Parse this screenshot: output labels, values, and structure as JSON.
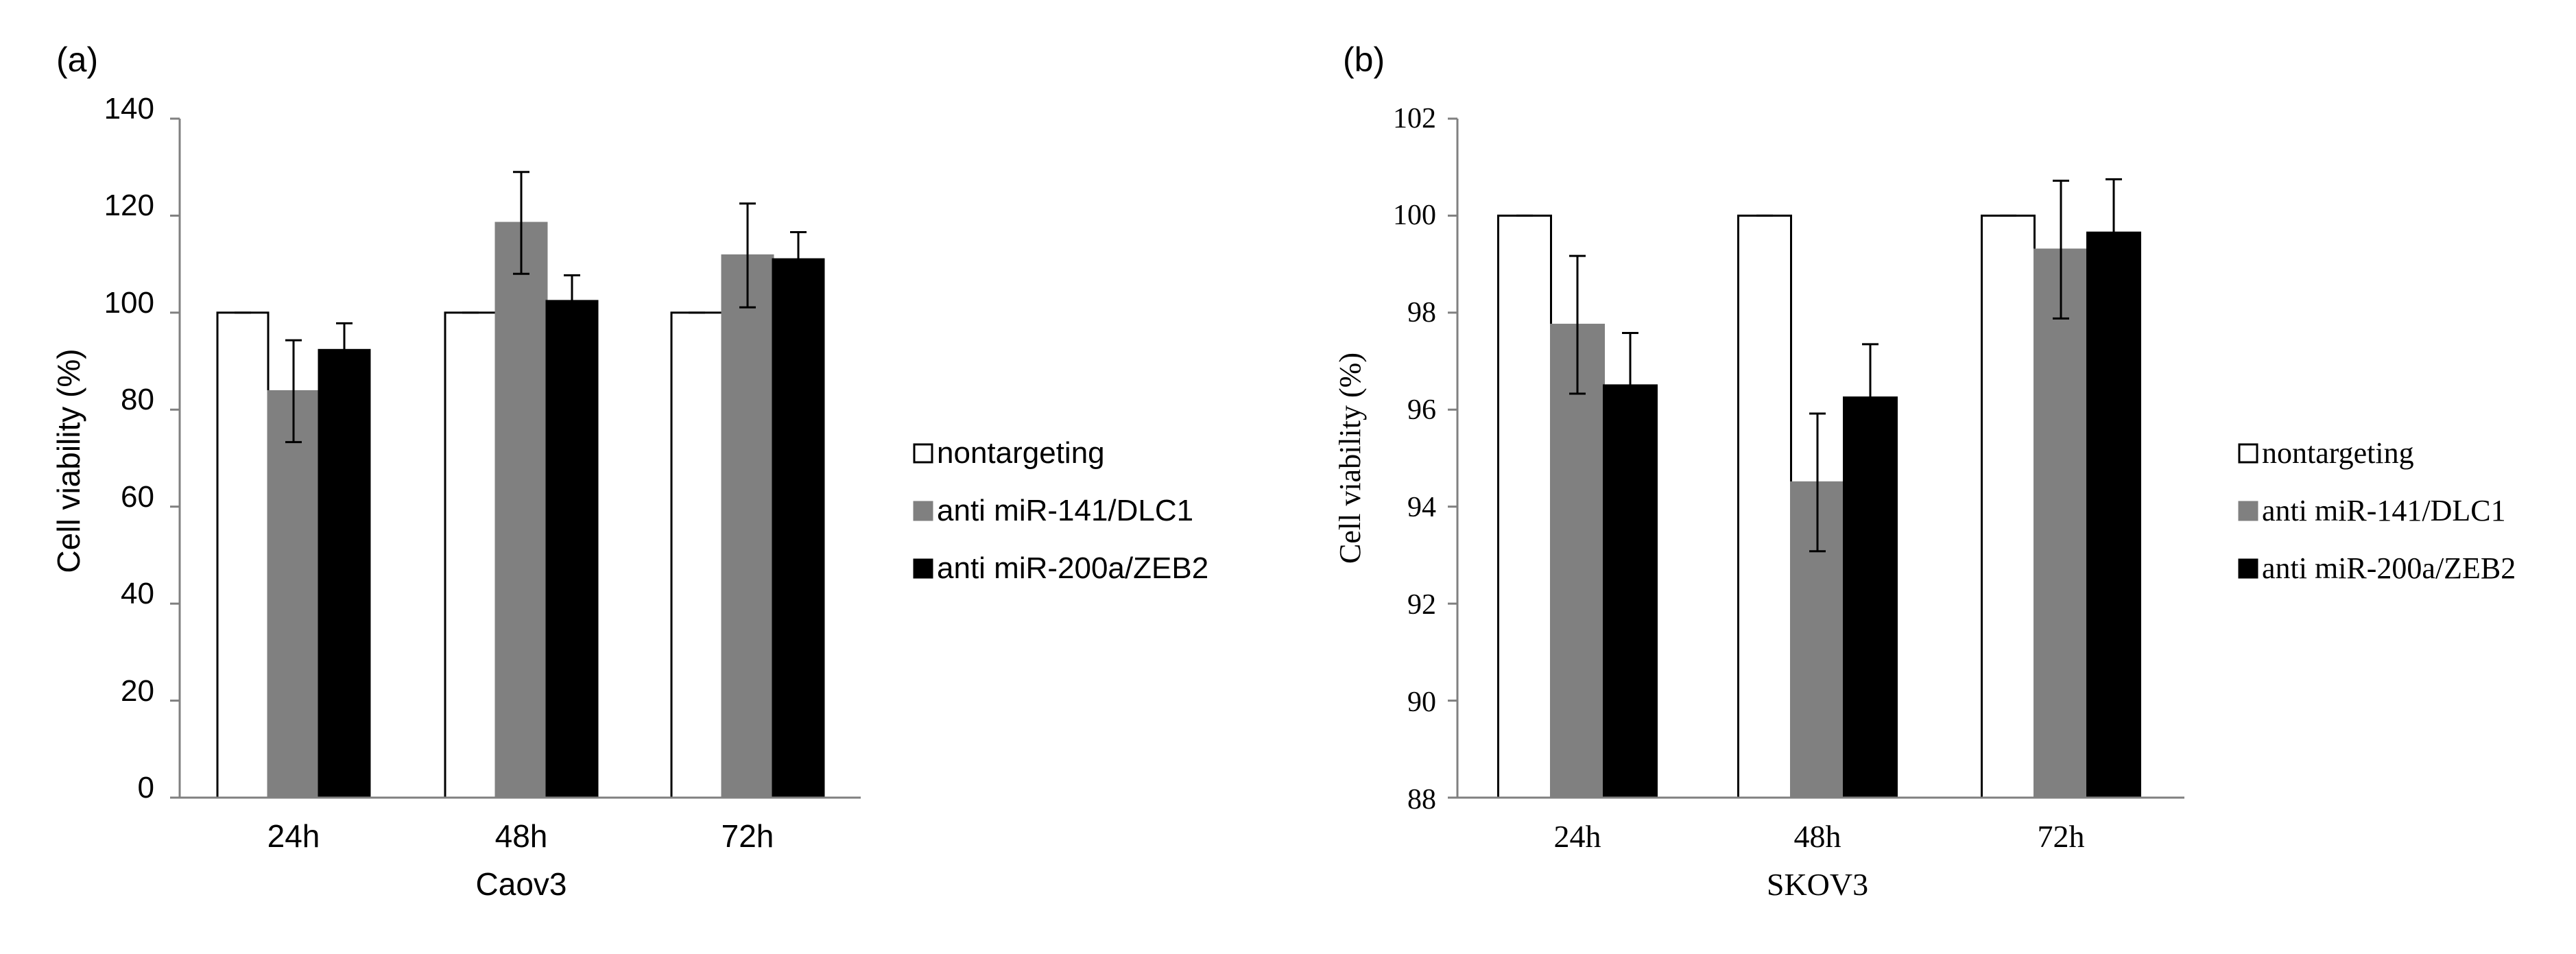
{
  "chart_data": [
    {
      "panel_label": "(a)",
      "type": "bar",
      "categories": [
        "24h",
        "48h",
        "72h"
      ],
      "series": [
        {
          "name": "nontargeting",
          "values": [
            100,
            100,
            100
          ],
          "errors": [
            0,
            0,
            0
          ],
          "color": "#ffffff"
        },
        {
          "name": "anti miR-141/DLC1",
          "values": [
            83.8,
            118.5,
            111.8
          ],
          "errors": [
            10.5,
            10.5,
            10.7
          ],
          "color": "#808080"
        },
        {
          "name": "anti miR-200a/ZEB2",
          "values": [
            92.3,
            102.4,
            111.0
          ],
          "errors": [
            5.5,
            5.3,
            5.6
          ],
          "color": "#000000"
        }
      ],
      "xlabel": "Caov3",
      "ylabel": "Cell viability (%)",
      "ylim": [
        0,
        140
      ],
      "yticks": [
        "0",
        "20",
        "40",
        "60",
        "80",
        "100",
        "120",
        "140"
      ],
      "legend_position": "right",
      "grid": false
    },
    {
      "panel_label": "(b)",
      "type": "bar",
      "categories": [
        "24h",
        "48h",
        "72h"
      ],
      "series": [
        {
          "name": "nontargeting",
          "values": [
            100,
            100,
            100
          ],
          "errors": [
            0,
            0,
            0
          ],
          "color": "#ffffff"
        },
        {
          "name": "anti miR-141/DLC1",
          "values": [
            97.75,
            94.5,
            99.3
          ],
          "errors": [
            1.42,
            1.42,
            1.42
          ],
          "color": "#808080"
        },
        {
          "name": "anti miR-200a/ZEB2",
          "values": [
            96.5,
            96.25,
            99.65
          ],
          "errors": [
            1.08,
            1.1,
            1.1
          ],
          "color": "#000000"
        }
      ],
      "xlabel": "SKOV3",
      "ylabel": "Cell viability (%)",
      "ylim": [
        88,
        102
      ],
      "yticks": [
        "88",
        "90",
        "92",
        "94",
        "96",
        "98",
        "100",
        "102"
      ],
      "legend_position": "right",
      "grid": false
    }
  ]
}
